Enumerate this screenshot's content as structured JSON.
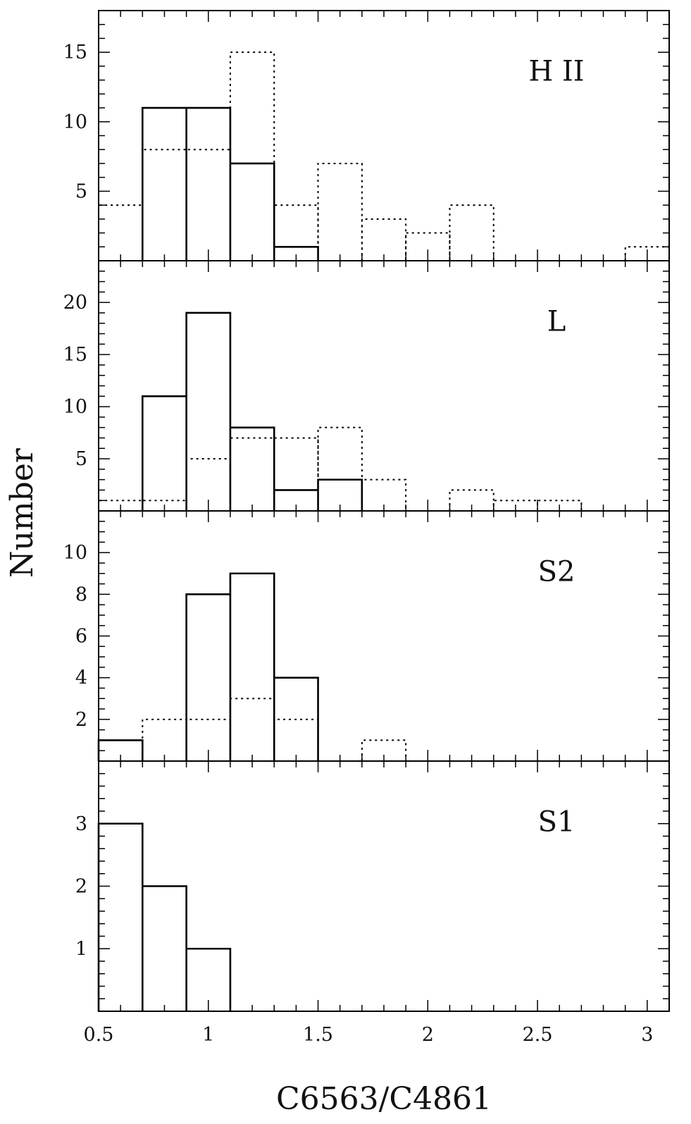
{
  "chart_data": {
    "type": "histogram",
    "xlabel": "C6563/C4861",
    "ylabel": "Number",
    "xlim": [
      0.5,
      3.1
    ],
    "x_ticks": [
      0.5,
      1,
      1.5,
      2,
      2.5,
      3
    ],
    "x_tick_labels": [
      "0.5",
      "1",
      "1.5",
      "2",
      "2.5",
      "3"
    ],
    "bin_width": 0.2,
    "panels": [
      {
        "label": "H II",
        "ylim": [
          0,
          18
        ],
        "y_ticks": [
          5,
          10,
          15
        ],
        "y_tick_labels": [
          "5",
          "10",
          "15"
        ],
        "series": [
          {
            "style": "solid",
            "bins": [
              [
                0.7,
                0.9,
                11
              ],
              [
                0.9,
                1.1,
                11
              ],
              [
                1.1,
                1.3,
                7
              ],
              [
                1.3,
                1.5,
                1
              ]
            ]
          },
          {
            "style": "dotted",
            "bins": [
              [
                0.5,
                0.7,
                4
              ],
              [
                0.7,
                0.9,
                8
              ],
              [
                0.9,
                1.1,
                8
              ],
              [
                1.1,
                1.3,
                15
              ],
              [
                1.3,
                1.5,
                4
              ],
              [
                1.5,
                1.7,
                7
              ],
              [
                1.7,
                1.9,
                3
              ],
              [
                1.9,
                2.1,
                2
              ],
              [
                2.1,
                2.3,
                4
              ],
              [
                2.9,
                3.1,
                1
              ]
            ]
          }
        ]
      },
      {
        "label": "L",
        "ylim": [
          0,
          24
        ],
        "y_ticks": [
          5,
          10,
          15,
          20
        ],
        "y_tick_labels": [
          "5",
          "10",
          "15",
          "20"
        ],
        "series": [
          {
            "style": "solid",
            "bins": [
              [
                0.7,
                0.9,
                11
              ],
              [
                0.9,
                1.1,
                19
              ],
              [
                1.1,
                1.3,
                8
              ],
              [
                1.3,
                1.5,
                2
              ],
              [
                1.5,
                1.7,
                3
              ]
            ]
          },
          {
            "style": "dotted",
            "bins": [
              [
                0.5,
                0.7,
                1
              ],
              [
                0.7,
                0.9,
                1
              ],
              [
                0.9,
                1.1,
                5
              ],
              [
                1.1,
                1.3,
                7
              ],
              [
                1.3,
                1.5,
                7
              ],
              [
                1.5,
                1.7,
                8
              ],
              [
                1.7,
                1.9,
                3
              ],
              [
                2.1,
                2.3,
                2
              ],
              [
                2.3,
                2.5,
                1
              ],
              [
                2.5,
                2.7,
                1
              ]
            ]
          }
        ]
      },
      {
        "label": "S2",
        "ylim": [
          0,
          12
        ],
        "y_ticks": [
          2,
          4,
          6,
          8,
          10
        ],
        "y_tick_labels": [
          "2",
          "4",
          "6",
          "8",
          "10"
        ],
        "series": [
          {
            "style": "solid",
            "bins": [
              [
                0.5,
                0.7,
                1
              ],
              [
                0.9,
                1.1,
                8
              ],
              [
                1.1,
                1.3,
                9
              ],
              [
                1.3,
                1.5,
                4
              ]
            ]
          },
          {
            "style": "dotted",
            "bins": [
              [
                0.7,
                0.9,
                2
              ],
              [
                0.9,
                1.1,
                2
              ],
              [
                1.1,
                1.3,
                3
              ],
              [
                1.3,
                1.5,
                2
              ],
              [
                1.7,
                1.9,
                1
              ]
            ]
          }
        ]
      },
      {
        "label": "S1",
        "ylim": [
          0,
          4
        ],
        "y_ticks": [
          1,
          2,
          3
        ],
        "y_tick_labels": [
          "1",
          "2",
          "3"
        ],
        "series": [
          {
            "style": "solid",
            "bins": [
              [
                0.5,
                0.7,
                3
              ],
              [
                0.7,
                0.9,
                2
              ],
              [
                0.9,
                1.1,
                1
              ]
            ]
          }
        ]
      }
    ]
  }
}
